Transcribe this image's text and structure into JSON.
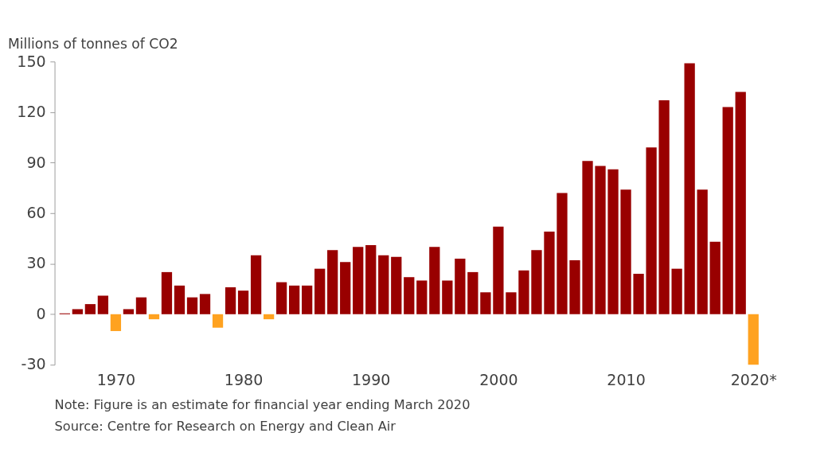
{
  "chart_data": {
    "type": "bar",
    "ylabel": "Millions of tonnes of CO2",
    "x": [
      1966,
      1967,
      1968,
      1969,
      1970,
      1971,
      1972,
      1973,
      1974,
      1975,
      1976,
      1977,
      1978,
      1979,
      1980,
      1981,
      1982,
      1983,
      1984,
      1985,
      1986,
      1987,
      1988,
      1989,
      1990,
      1991,
      1992,
      1993,
      1994,
      1995,
      1996,
      1997,
      1998,
      1999,
      2000,
      2001,
      2002,
      2003,
      2004,
      2005,
      2006,
      2007,
      2008,
      2009,
      2010,
      2011,
      2012,
      2013,
      2014,
      2015,
      2016,
      2017,
      2018,
      2019,
      2020
    ],
    "values": [
      0.5,
      3,
      6,
      11,
      -10,
      3,
      10,
      -3,
      25,
      17,
      10,
      12,
      -8,
      16,
      14,
      35,
      -3,
      19,
      17,
      17,
      27,
      38,
      31,
      40,
      41,
      35,
      34,
      22,
      20,
      40,
      20,
      33,
      25,
      13,
      52,
      13,
      26,
      38,
      49,
      72,
      32,
      91,
      88,
      86,
      74,
      24,
      99,
      127,
      27,
      149,
      74,
      43,
      123,
      132,
      -30
    ],
    "colors": [
      "#990000",
      "#990000",
      "#990000",
      "#990000",
      "#ffa220",
      "#990000",
      "#990000",
      "#ffa220",
      "#990000",
      "#990000",
      "#990000",
      "#990000",
      "#ffa220",
      "#990000",
      "#990000",
      "#990000",
      "#ffa220",
      "#990000",
      "#990000",
      "#990000",
      "#990000",
      "#990000",
      "#990000",
      "#990000",
      "#990000",
      "#990000",
      "#990000",
      "#990000",
      "#990000",
      "#990000",
      "#990000",
      "#990000",
      "#990000",
      "#990000",
      "#990000",
      "#990000",
      "#990000",
      "#990000",
      "#990000",
      "#990000",
      "#990000",
      "#990000",
      "#990000",
      "#990000",
      "#990000",
      "#990000",
      "#990000",
      "#990000",
      "#990000",
      "#990000",
      "#990000",
      "#990000",
      "#990000",
      "#990000",
      "#ffa220"
    ],
    "xlim": [
      1965.5,
      2020.8
    ],
    "xticks": [
      1970,
      1980,
      1990,
      2000,
      2010,
      {
        "value": 2020,
        "label": "2020*"
      }
    ],
    "ylim": [
      -30,
      150
    ],
    "yticks": [
      -30,
      0,
      30,
      60,
      90,
      120,
      150
    ],
    "grid": false,
    "legend": false,
    "annotations": [
      "Note: Figure is an estimate for financial year ending March 2020",
      "Source: Centre for Research on Energy and Clean Air"
    ]
  }
}
